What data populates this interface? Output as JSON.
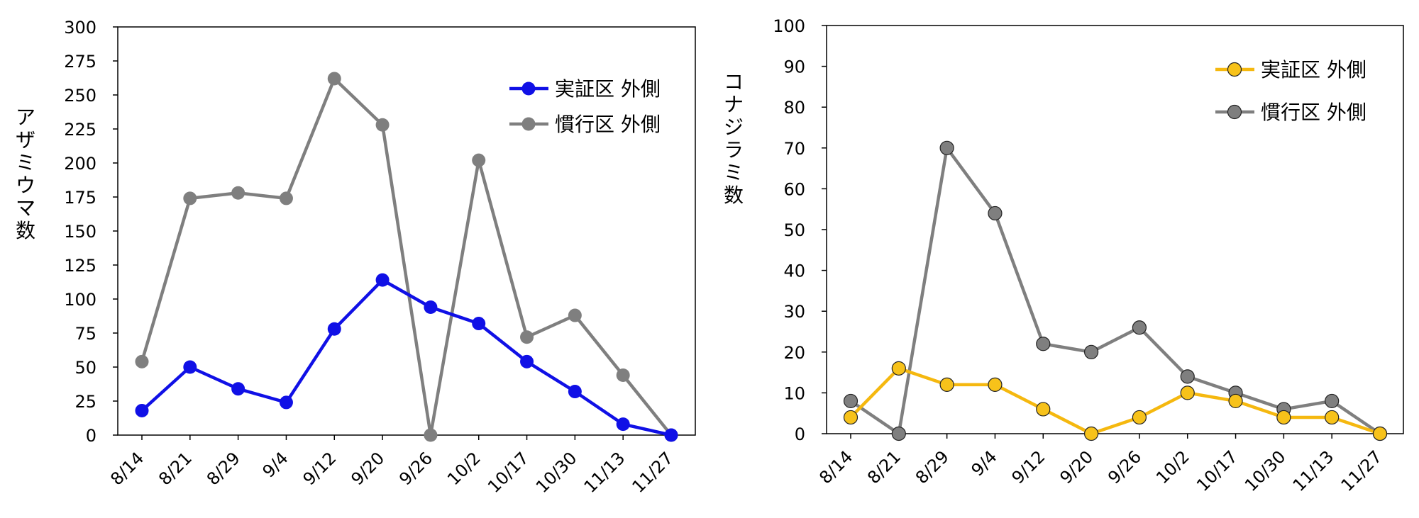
{
  "chart_data": [
    {
      "type": "line",
      "title": "",
      "xlabel": "",
      "ylabel": "アザミウマ数",
      "ylim": [
        0,
        300
      ],
      "yticks": [
        0,
        25,
        50,
        75,
        100,
        125,
        150,
        175,
        200,
        225,
        250,
        275,
        300
      ],
      "categories": [
        "8/14",
        "8/21",
        "8/29",
        "9/4",
        "9/12",
        "9/20",
        "9/26",
        "10/2",
        "10/17",
        "10/30",
        "11/13",
        "11/27"
      ],
      "legend_position": "top-right",
      "grid": false,
      "series": [
        {
          "name": "実証区 外側",
          "color": "#1010e6",
          "marker_fill": "#1010e6",
          "values": [
            18,
            50,
            34,
            24,
            78,
            114,
            94,
            82,
            54,
            32,
            8,
            0
          ]
        },
        {
          "name": "慣行区 外側",
          "color": "#7f7f7f",
          "marker_fill": "#7f7f7f",
          "values": [
            54,
            174,
            178,
            174,
            262,
            228,
            0,
            202,
            72,
            88,
            44,
            0
          ]
        }
      ]
    },
    {
      "type": "line",
      "title": "",
      "xlabel": "",
      "ylabel": "コナジラミ数",
      "ylim": [
        0,
        100
      ],
      "yticks": [
        0,
        10,
        20,
        30,
        40,
        50,
        60,
        70,
        80,
        90,
        100
      ],
      "categories": [
        "8/14",
        "8/21",
        "8/29",
        "9/4",
        "9/12",
        "9/20",
        "9/26",
        "10/2",
        "10/17",
        "10/30",
        "11/13",
        "11/27"
      ],
      "legend_position": "top-right",
      "grid": false,
      "series": [
        {
          "name": "実証区 外側",
          "color": "#f5b80f",
          "marker_fill": "#f7c21a",
          "values": [
            4,
            16,
            12,
            12,
            6,
            0,
            4,
            10,
            8,
            4,
            4,
            0
          ]
        },
        {
          "name": "慣行区 外側",
          "color": "#7f7f7f",
          "marker_fill": "#7f7f7f",
          "values": [
            8,
            0,
            70,
            54,
            22,
            20,
            26,
            14,
            10,
            6,
            8,
            0
          ]
        }
      ]
    }
  ]
}
